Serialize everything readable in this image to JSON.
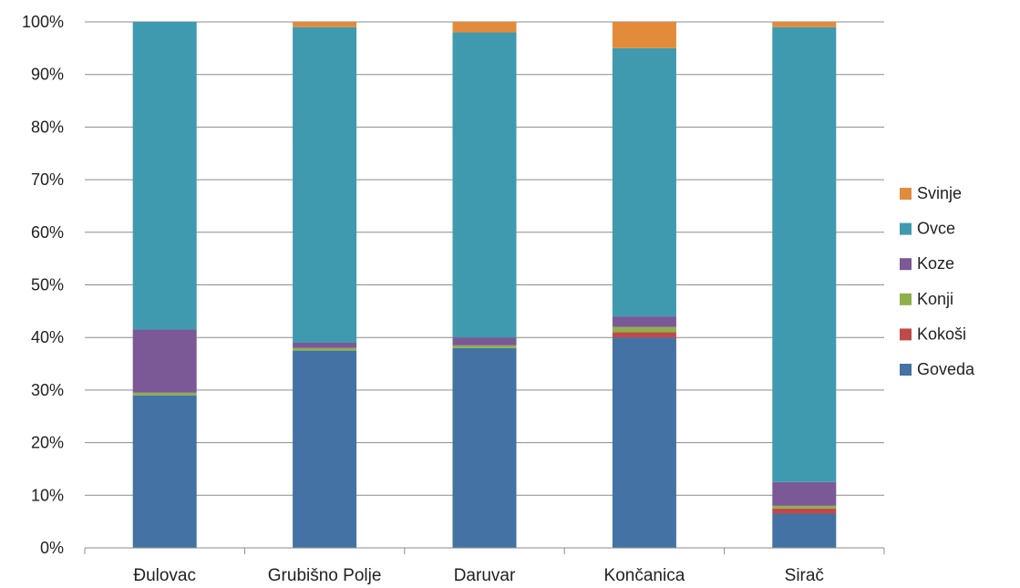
{
  "chart_data": {
    "type": "bar",
    "stacked": true,
    "normalized": true,
    "categories": [
      "Đulovac",
      "Grubišno Polje",
      "Daruvar",
      "Končanica",
      "Sirač"
    ],
    "y_ticks": [
      "0%",
      "10%",
      "20%",
      "30%",
      "40%",
      "50%",
      "60%",
      "70%",
      "80%",
      "90%",
      "100%"
    ],
    "ylim": [
      0,
      100
    ],
    "grid": true,
    "legend_position": "right",
    "series": [
      {
        "name": "Goveda",
        "color": "#4472A4",
        "values": [
          29,
          37.5,
          38,
          40,
          6.5
        ]
      },
      {
        "name": "Kokoši",
        "color": "#BE4B48",
        "values": [
          0,
          0,
          0,
          1,
          1
        ]
      },
      {
        "name": "Konji",
        "color": "#8FB04B",
        "values": [
          0.5,
          0.5,
          0.5,
          1,
          0.5
        ]
      },
      {
        "name": "Koze",
        "color": "#7A5996",
        "values": [
          12,
          1,
          1.5,
          2,
          4.5
        ]
      },
      {
        "name": "Ovce",
        "color": "#3F9AB0",
        "values": [
          58.5,
          60,
          58,
          51,
          86.5
        ]
      },
      {
        "name": "Svinje",
        "color": "#E28B3B",
        "values": [
          0,
          1,
          2,
          5,
          1
        ]
      }
    ]
  }
}
